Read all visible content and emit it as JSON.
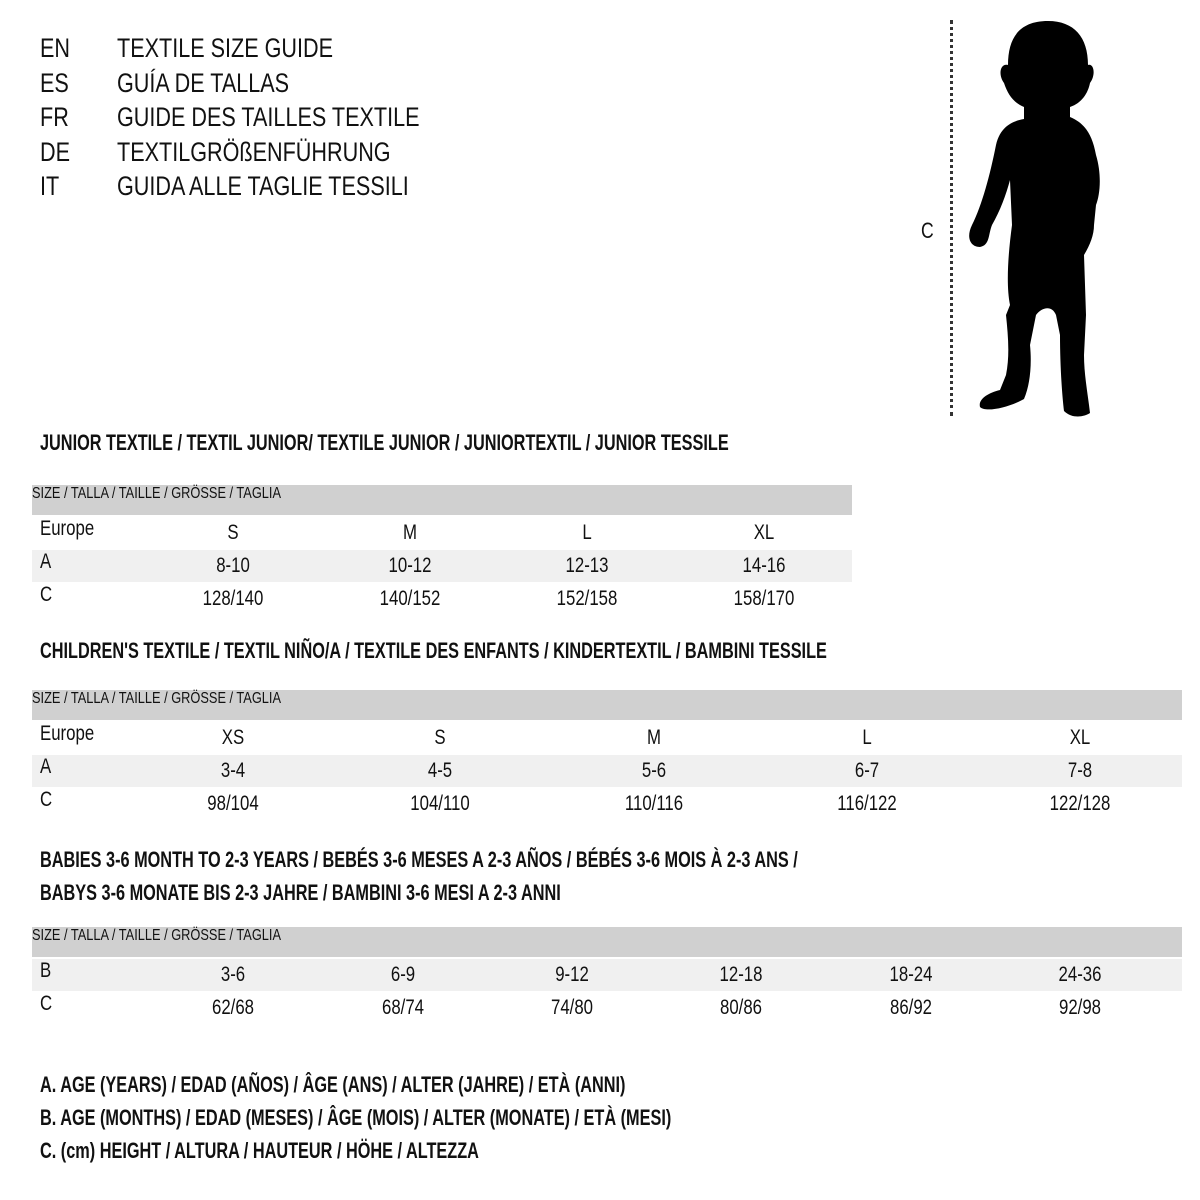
{
  "titles": [
    {
      "code": "EN",
      "text": "TEXTILE SIZE GUIDE"
    },
    {
      "code": "ES",
      "text": "GUÍA DE TALLAS"
    },
    {
      "code": "FR",
      "text": "GUIDE DES TAILLES TEXTILE"
    },
    {
      "code": "DE",
      "text": "TEXTILGRÖßENFÜHRUNG"
    },
    {
      "code": "IT",
      "text": "GUIDA ALLE TAGLIE TESSILI"
    }
  ],
  "figure": {
    "label": "C",
    "icon": "child-silhouette-icon"
  },
  "tables": [
    {
      "heading": [
        "JUNIOR TEXTILE / TEXTIL JUNIOR/ TEXTILE JUNIOR / JUNIORTEXTIL / JUNIOR TESSILE"
      ],
      "header": "SIZE / TALLA / TAILLE / GRÖSSE / TAGLIA",
      "rows": [
        {
          "label": "Europe",
          "values": [
            "S",
            "M",
            "L",
            "XL"
          ]
        },
        {
          "label": "A",
          "values": [
            "8-10",
            "10-12",
            "12-13",
            "14-16"
          ]
        },
        {
          "label": "C",
          "values": [
            "128/140",
            "140/152",
            "152/158",
            "158/170"
          ]
        }
      ]
    },
    {
      "heading": [
        "CHILDREN'S TEXTILE / TEXTIL NIÑO/A / TEXTILE DES ENFANTS / KINDERTEXTIL / BAMBINI TESSILE"
      ],
      "header": "SIZE / TALLA / TAILLE / GRÖSSE / TAGLIA",
      "rows": [
        {
          "label": "Europe",
          "values": [
            "XS",
            "S",
            "M",
            "L",
            "XL"
          ]
        },
        {
          "label": "A",
          "values": [
            "3-4",
            "4-5",
            "5-6",
            "6-7",
            "7-8"
          ]
        },
        {
          "label": "C",
          "values": [
            "98/104",
            "104/110",
            "110/116",
            "116/122",
            "122/128"
          ]
        }
      ]
    },
    {
      "heading": [
        "BABIES 3-6 MONTH TO 2-3 YEARS / BEBÉS 3-6 MESES A 2-3 AÑOS / BÉBÉS 3-6 MOIS À 2-3 ANS /",
        "BABYS 3-6 MONATE BIS 2-3 JAHRE / BAMBINI 3-6 MESI A 2-3 ANNI"
      ],
      "header": "SIZE / TALLA / TAILLE / GRÖSSE / TAGLIA",
      "rows": [
        {
          "label": "B",
          "values": [
            "3-6",
            "6-9",
            "9-12",
            "12-18",
            "18-24",
            "24-36"
          ]
        },
        {
          "label": "C",
          "values": [
            "62/68",
            "68/74",
            "74/80",
            "80/86",
            "86/92",
            "92/98"
          ]
        }
      ]
    }
  ],
  "legend": [
    "A. AGE (YEARS) / EDAD (AÑOS) / ÂGE (ANS) / ALTER (JAHRE) / ETÀ (ANNI)",
    "B. AGE (MONTHS) / EDAD (MESES) / ÂGE (MOIS) / ALTER (MONATE) / ETÀ (MESI)",
    "C. (cm) HEIGHT / ALTURA / HAUTEUR / HÖHE / ALTEZZA"
  ]
}
